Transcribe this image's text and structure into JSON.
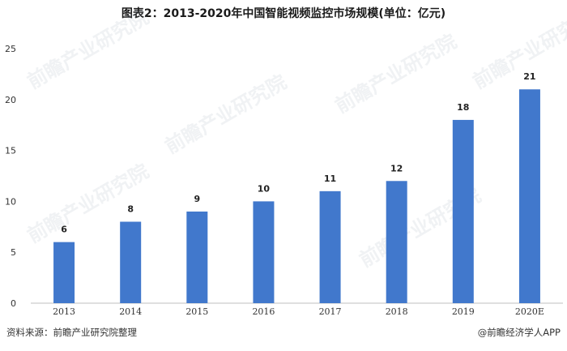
{
  "title": "图表2：2013-2020年中国智能视频监控市场规模(单位：亿元)",
  "footer": {
    "source": "资料来源：前瞻产业研究院整理",
    "brand": "@前瞻经济学人APP"
  },
  "watermark": "前瞻产业研究院",
  "colors": {
    "bar": "#4178cc",
    "axis": "#bfbfbf"
  },
  "chart_data": {
    "type": "bar",
    "title": "图表2：2013-2020年中国智能视频监控市场规模(单位：亿元)",
    "xlabel": "",
    "ylabel": "",
    "categories": [
      "2013",
      "2014",
      "2015",
      "2016",
      "2017",
      "2018",
      "2019",
      "2020E"
    ],
    "values": [
      6,
      8,
      9,
      10,
      11,
      12,
      18,
      21
    ],
    "data_labels": [
      "6",
      "8",
      "9",
      "10",
      "11",
      "12",
      "18",
      "21"
    ],
    "ylim": [
      0,
      25
    ],
    "yticks": [
      "0",
      "5",
      "10",
      "15",
      "20",
      "25"
    ],
    "grid": false,
    "legend": "none"
  }
}
